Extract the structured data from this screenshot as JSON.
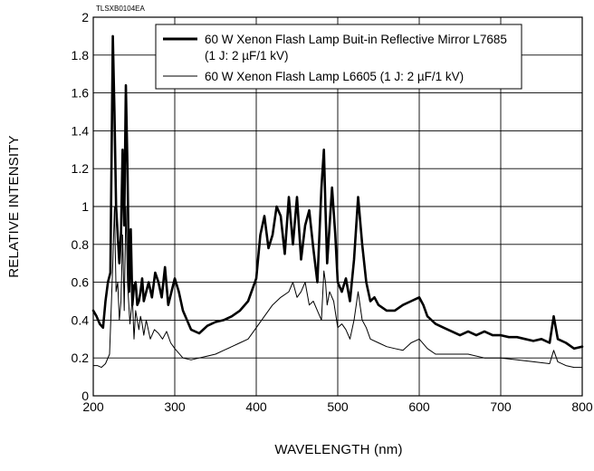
{
  "figure_code": "TLSXB0104EA",
  "chart_data": {
    "type": "line",
    "xlabel": "WAVELENGTH (nm)",
    "ylabel": "RELATIVE INTENSITY",
    "xlim": [
      200,
      800
    ],
    "ylim": [
      0,
      2
    ],
    "x_ticks": [
      200,
      300,
      400,
      500,
      600,
      700,
      800
    ],
    "y_ticks": [
      0,
      0.2,
      0.4,
      0.6,
      0.8,
      1,
      1.2,
      1.4,
      1.6,
      1.8,
      2
    ],
    "x_tick_labels": [
      "200",
      "300",
      "400",
      "500",
      "600",
      "700",
      "800"
    ],
    "y_tick_labels": [
      "0",
      "0.2",
      "0.4",
      "0.6",
      "0.8",
      "1",
      "1.2",
      "1.4",
      "1.6",
      "1.8",
      "2"
    ],
    "grid": true,
    "legend_position": "top-right",
    "series": [
      {
        "name": "60 W Xenon Flash Lamp Buit-in Reflective Mirror L7685",
        "name_line2": "(1 J: 2 µF/1 kV)",
        "style": "thick",
        "x": [
          200,
          204,
          208,
          212,
          215,
          218,
          221,
          224,
          226,
          228,
          230,
          232,
          234,
          236,
          238,
          240,
          242,
          244,
          246,
          248,
          250,
          252,
          254,
          256,
          258,
          260,
          262,
          265,
          268,
          272,
          276,
          280,
          284,
          288,
          292,
          296,
          300,
          305,
          310,
          315,
          320,
          330,
          340,
          350,
          360,
          370,
          380,
          390,
          400,
          405,
          410,
          415,
          420,
          425,
          430,
          435,
          440,
          445,
          450,
          455,
          460,
          465,
          470,
          475,
          480,
          483,
          485,
          487,
          490,
          493,
          497,
          500,
          505,
          510,
          515,
          520,
          525,
          530,
          535,
          540,
          545,
          550,
          560,
          570,
          580,
          590,
          600,
          605,
          610,
          620,
          630,
          640,
          650,
          660,
          670,
          680,
          690,
          700,
          710,
          720,
          730,
          740,
          750,
          760,
          765,
          770,
          780,
          790,
          800
        ],
        "y": [
          0.45,
          0.42,
          0.38,
          0.36,
          0.5,
          0.6,
          0.65,
          1.9,
          1.5,
          1.0,
          0.85,
          0.7,
          0.85,
          1.3,
          0.9,
          1.64,
          1.2,
          0.55,
          0.88,
          0.48,
          0.58,
          0.6,
          0.48,
          0.5,
          0.55,
          0.62,
          0.5,
          0.55,
          0.6,
          0.52,
          0.65,
          0.6,
          0.52,
          0.68,
          0.48,
          0.55,
          0.62,
          0.55,
          0.45,
          0.4,
          0.35,
          0.33,
          0.37,
          0.39,
          0.4,
          0.42,
          0.45,
          0.5,
          0.62,
          0.85,
          0.95,
          0.78,
          0.85,
          1.0,
          0.95,
          0.75,
          1.05,
          0.8,
          1.05,
          0.72,
          0.9,
          0.98,
          0.78,
          0.6,
          1.1,
          1.3,
          0.98,
          0.7,
          0.9,
          1.1,
          0.85,
          0.6,
          0.55,
          0.62,
          0.5,
          0.72,
          1.05,
          0.8,
          0.6,
          0.5,
          0.52,
          0.48,
          0.45,
          0.45,
          0.48,
          0.5,
          0.52,
          0.48,
          0.42,
          0.38,
          0.36,
          0.34,
          0.32,
          0.34,
          0.32,
          0.34,
          0.32,
          0.32,
          0.31,
          0.31,
          0.3,
          0.29,
          0.3,
          0.28,
          0.42,
          0.3,
          0.28,
          0.25,
          0.26
        ]
      },
      {
        "name": "60 W Xenon Flash Lamp L6605 (1 J: 2 µF/1 kV)",
        "name_line2": "",
        "style": "thin",
        "x": [
          200,
          205,
          210,
          215,
          220,
          224,
          226,
          228,
          230,
          232,
          234,
          236,
          238,
          240,
          242,
          245,
          248,
          250,
          252,
          254,
          256,
          258,
          260,
          262,
          265,
          270,
          275,
          280,
          285,
          290,
          295,
          300,
          310,
          320,
          330,
          340,
          350,
          360,
          370,
          380,
          390,
          400,
          410,
          420,
          430,
          440,
          445,
          450,
          455,
          460,
          465,
          470,
          475,
          480,
          483,
          485,
          487,
          490,
          495,
          500,
          505,
          510,
          515,
          520,
          525,
          530,
          535,
          540,
          550,
          560,
          570,
          580,
          590,
          600,
          610,
          620,
          640,
          660,
          680,
          700,
          720,
          740,
          760,
          765,
          770,
          780,
          790,
          800
        ],
        "y": [
          0.16,
          0.16,
          0.15,
          0.17,
          0.22,
          0.7,
          1.0,
          0.55,
          0.6,
          0.4,
          0.5,
          0.85,
          0.45,
          1.0,
          0.6,
          0.38,
          0.52,
          0.3,
          0.45,
          0.4,
          0.35,
          0.42,
          0.38,
          0.32,
          0.4,
          0.3,
          0.35,
          0.33,
          0.3,
          0.34,
          0.28,
          0.25,
          0.2,
          0.19,
          0.2,
          0.21,
          0.22,
          0.24,
          0.26,
          0.28,
          0.3,
          0.36,
          0.42,
          0.48,
          0.52,
          0.55,
          0.6,
          0.52,
          0.55,
          0.6,
          0.48,
          0.5,
          0.45,
          0.4,
          0.66,
          0.6,
          0.48,
          0.55,
          0.5,
          0.36,
          0.38,
          0.35,
          0.3,
          0.4,
          0.55,
          0.4,
          0.36,
          0.3,
          0.28,
          0.26,
          0.25,
          0.24,
          0.28,
          0.3,
          0.25,
          0.22,
          0.22,
          0.22,
          0.2,
          0.2,
          0.19,
          0.18,
          0.17,
          0.24,
          0.18,
          0.16,
          0.15,
          0.15
        ]
      }
    ]
  }
}
